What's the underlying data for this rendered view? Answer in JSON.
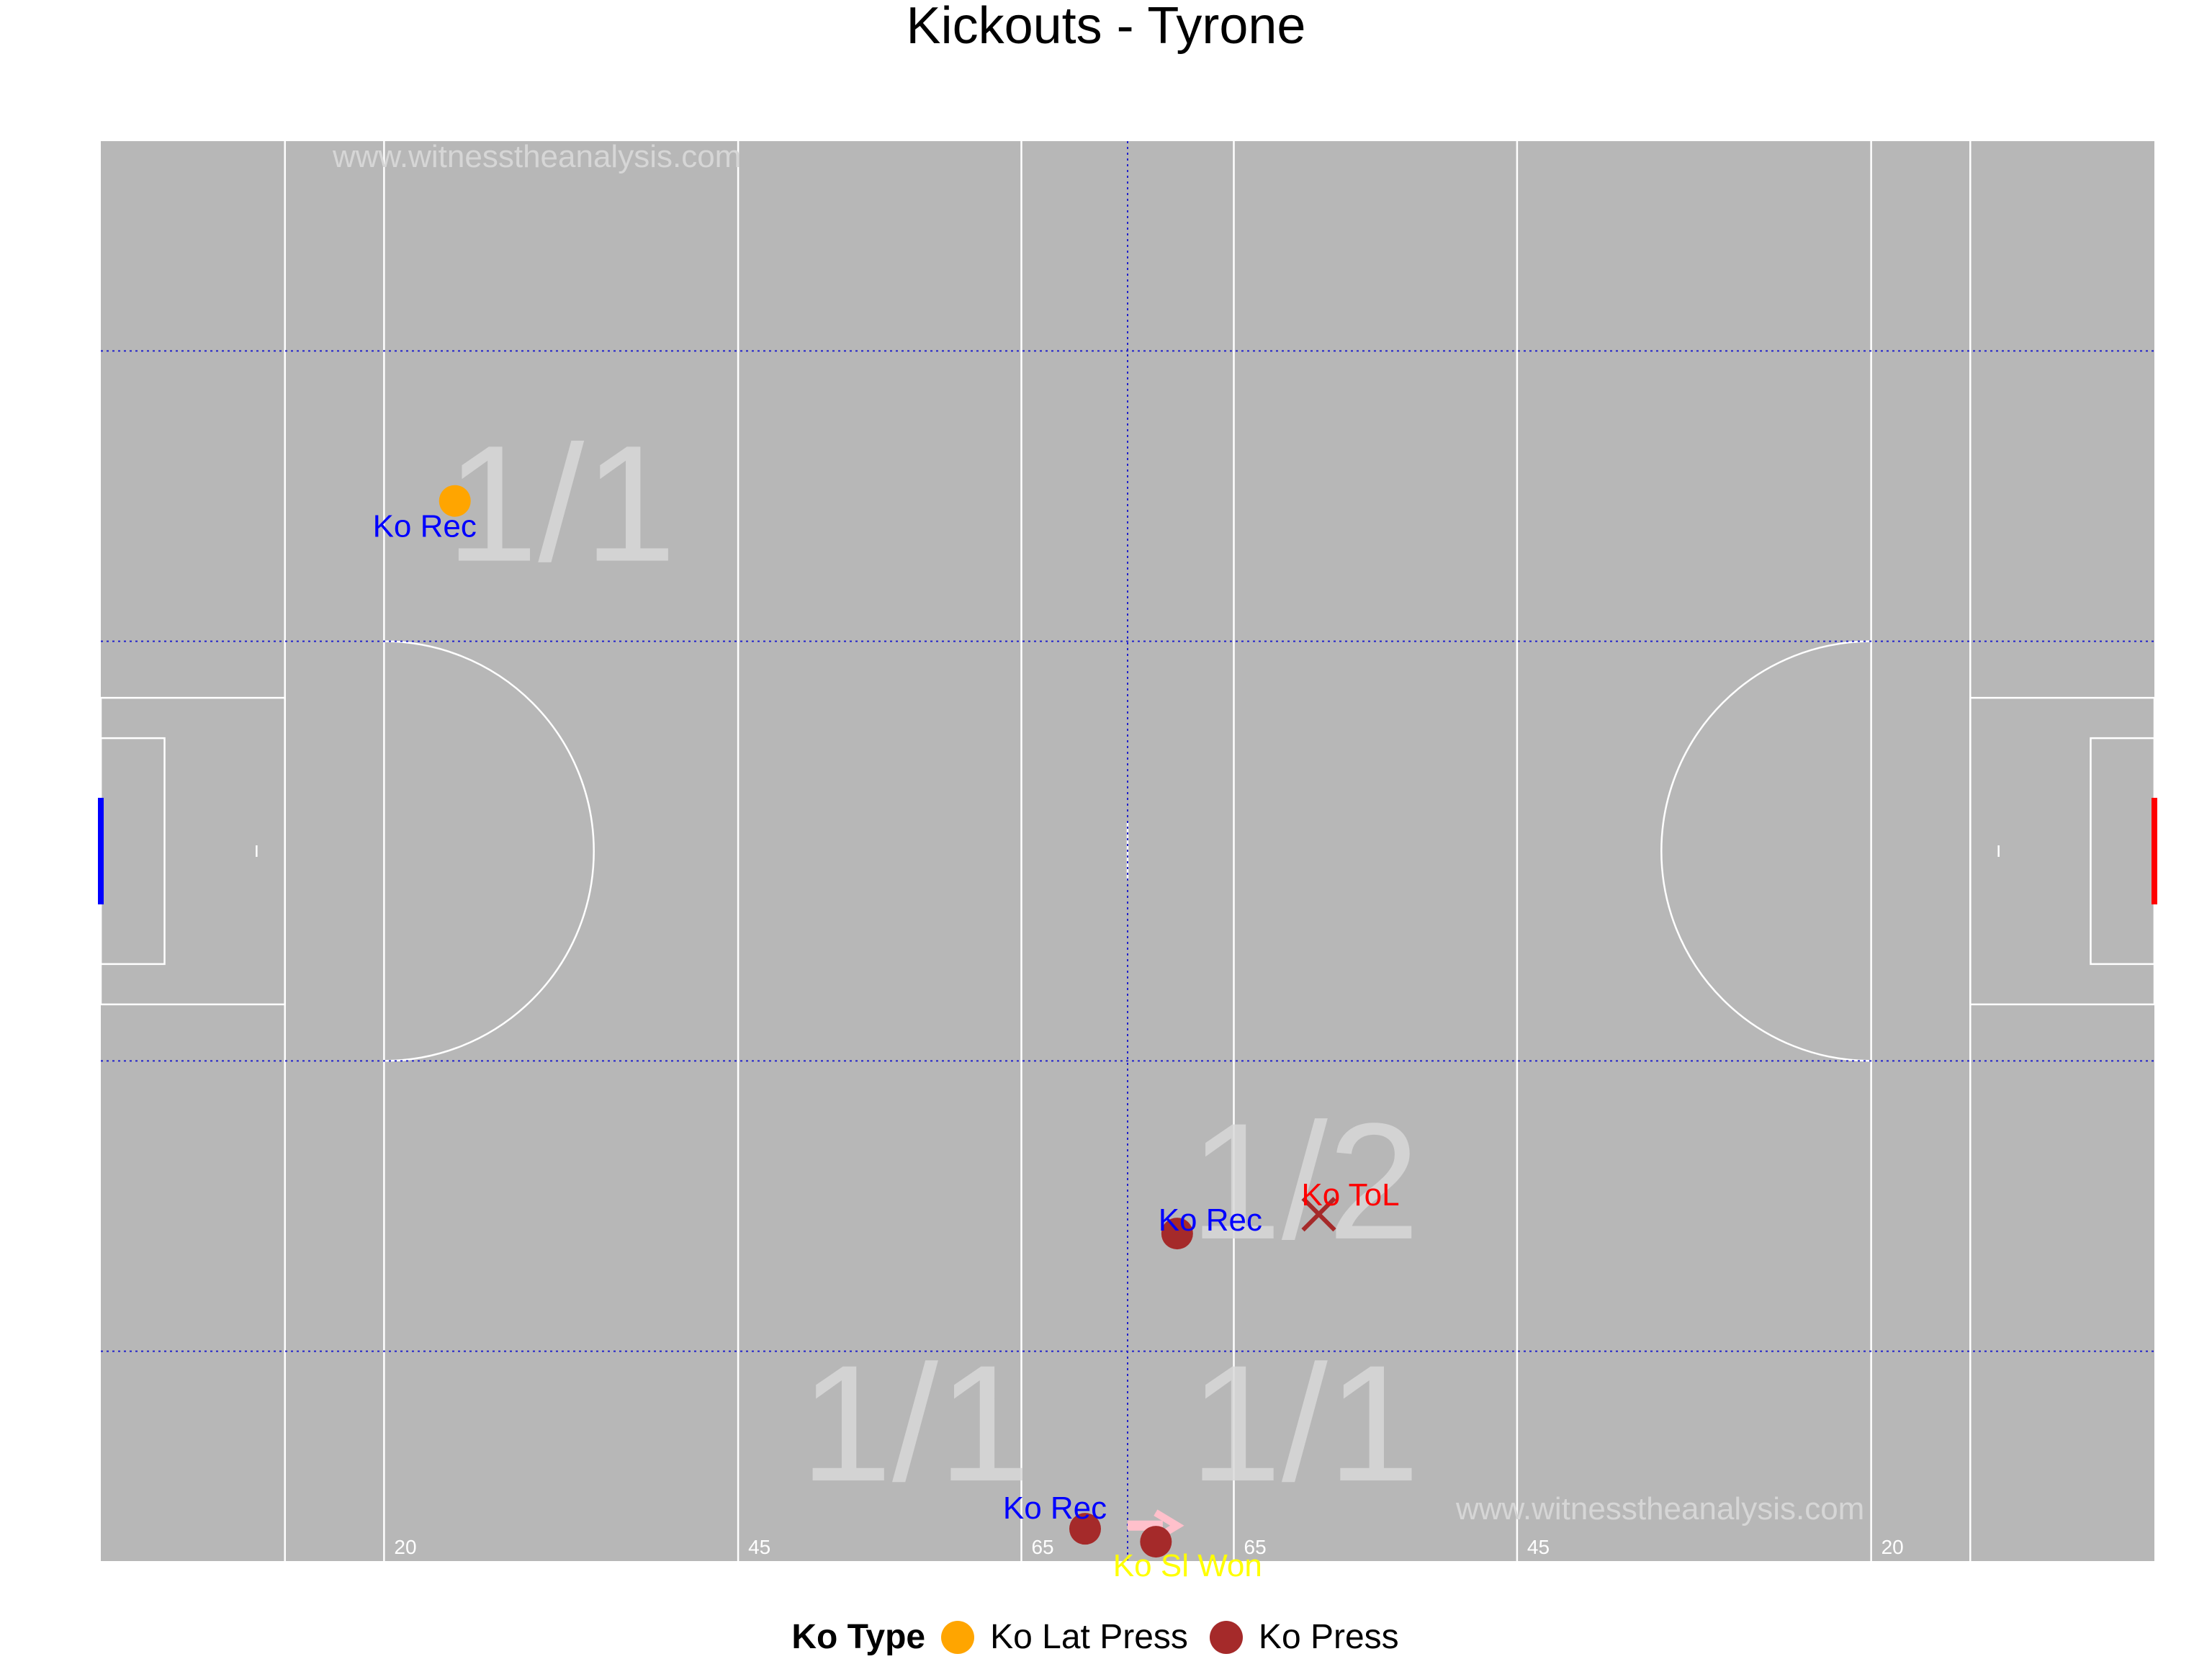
{
  "title": "Kickouts - Tyrone",
  "watermarks": [
    "www.witnesstheanalysis.com",
    "www.witnesstheanalysis.com"
  ],
  "colors": {
    "pitch": "#b7b7b7",
    "lines": "#ffffff",
    "grid": "#2222cc",
    "left_goal": "#0000ff",
    "right_goal": "#ff0000",
    "ko_lat_press": "#ffa500",
    "ko_press": "#a52a2a",
    "label_rec": "#0000ff",
    "label_tol": "#ff0000",
    "label_sl_won": "#ffff00",
    "zone_label": "#d9d9d9",
    "arrow": "#ffc0cb"
  },
  "pitch_labels": {
    "left_20": "20",
    "left_45": "45",
    "left_65": "65",
    "right_65": "65",
    "right_45": "45",
    "right_20": "20"
  },
  "chart_data": {
    "type": "scatter",
    "title": "Kickouts - Tyrone",
    "xlim": [
      0,
      145
    ],
    "ylim": [
      0,
      88
    ],
    "x_reference_lines": [
      13,
      20,
      45,
      65,
      72.5,
      80,
      100,
      125,
      132
    ],
    "y_grid_lines": [
      13,
      31,
      57,
      75
    ],
    "zone_labels": [
      {
        "text": "1/1",
        "x": 32.5,
        "y": 62
      },
      {
        "text": "1/2",
        "x": 85,
        "y": 20
      },
      {
        "text": "1/1",
        "x": 57.5,
        "y": 5
      },
      {
        "text": "1/1",
        "x": 85,
        "y": 5
      }
    ],
    "points": [
      {
        "ko_type": "Ko Lat Press",
        "outcome": "Ko Rec",
        "x": 25,
        "y": 65.7,
        "marker": "circle"
      },
      {
        "ko_type": "Ko Press",
        "outcome": "Ko Rec",
        "x": 76,
        "y": 20.3,
        "marker": "circle"
      },
      {
        "ko_type": "Ko Press",
        "outcome": "Ko ToL",
        "x": 86,
        "y": 21.5,
        "marker": "cross"
      },
      {
        "ko_type": "Ko Press",
        "outcome": "Ko Rec",
        "x": 69.5,
        "y": 2,
        "marker": "circle"
      },
      {
        "ko_type": "Ko Press",
        "outcome": "Ko Sl Won",
        "x": 74.5,
        "y": 1.2,
        "marker": "circle"
      }
    ],
    "arrows": [
      {
        "from": [
          72.5,
          2.2
        ],
        "to": [
          76,
          2.2
        ]
      }
    ],
    "legend": {
      "title": "Ko Type",
      "placement": "bottom",
      "entries": [
        {
          "label": "Ko Lat Press",
          "color": "#ffa500"
        },
        {
          "label": "Ko Press",
          "color": "#a52a2a"
        }
      ]
    }
  }
}
